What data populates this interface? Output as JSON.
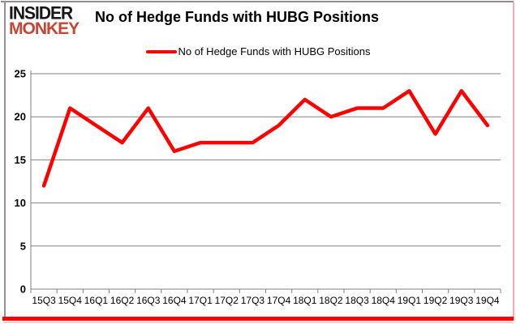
{
  "brand": {
    "line1": "INSIDER",
    "line2": "MONKEY"
  },
  "header": {
    "title": "No of Hedge Funds with HUBG Positions"
  },
  "legend": {
    "label": "No of Hedge Funds with HUBG Positions"
  },
  "colors": {
    "series_red": "#ff0000",
    "brand_black": "#171717",
    "brand_red": "#c64534",
    "grid_gray": "#808080",
    "axis_text": "#000000",
    "frame_bottom_red": "#ff0000"
  },
  "chart_data": {
    "type": "line",
    "title": "No of Hedge Funds with HUBG Positions",
    "categories": [
      "15Q3",
      "15Q4",
      "16Q1",
      "16Q2",
      "16Q3",
      "16Q4",
      "17Q1",
      "17Q2",
      "17Q3",
      "17Q4",
      "18Q1",
      "18Q2",
      "18Q3",
      "18Q4",
      "19Q1",
      "19Q2",
      "19Q3",
      "19Q4"
    ],
    "series": [
      {
        "name": "No of Hedge Funds with HUBG Positions",
        "color": "#ff0000",
        "values": [
          12,
          21,
          19,
          17,
          21,
          16,
          17,
          17,
          17,
          19,
          22,
          20,
          21,
          21,
          23,
          18,
          23,
          19
        ]
      }
    ],
    "xlabel": "",
    "ylabel": "",
    "ylim": [
      0,
      25
    ],
    "yticks": [
      0,
      5,
      10,
      15,
      20,
      25
    ],
    "grid": true,
    "legend_position": "top-center"
  }
}
